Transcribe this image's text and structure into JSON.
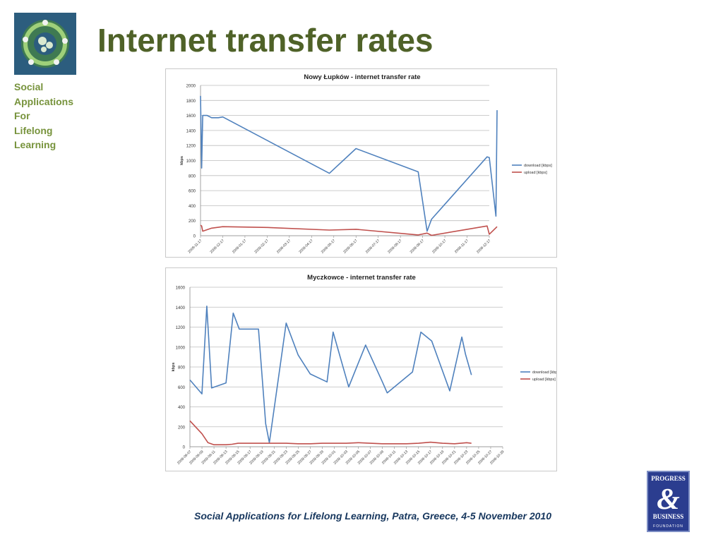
{
  "slide": {
    "title": "Internet transfer rates",
    "sidebar_lines": [
      "Social",
      "Applications",
      "For",
      "Lifelong",
      "Learning"
    ],
    "footer": "Social Applications for Lifelong Learning, Patra, Greece, 4-5 November 2010",
    "brand_logo": {
      "line1": "PROGRESS",
      "line2": "BUSINESS",
      "line3": "FOUNDATION",
      "symbol": "&"
    },
    "colors": {
      "title": "#4f6228",
      "sidebar": "#77933c",
      "footer": "#17375e",
      "download": "#4f81bd",
      "upload": "#c0504d",
      "logo_bg": "#2b3d8f"
    }
  },
  "chart_data": [
    {
      "type": "line",
      "title": "Nowy Łupków - internet transfer rate",
      "ylabel": "kbps",
      "xlabel": "",
      "ylim": [
        0,
        2000
      ],
      "yticks": [
        0,
        200,
        400,
        600,
        800,
        1000,
        1200,
        1400,
        1600,
        1800,
        2000
      ],
      "categories": [
        "2008-11-17",
        "2008-12-17",
        "2009-01-17",
        "2009-02-17",
        "2009-03-17",
        "2009-04-17",
        "2009-05-17",
        "2009-06-17",
        "2009-07-17",
        "2009-08-17",
        "2009-09-17",
        "2009-10-17",
        "2009-11-17",
        "2009-12-17"
      ],
      "grid": true,
      "legend": "right",
      "series": [
        {
          "name": "download [kbps]",
          "color": "#4f81bd",
          "x": [
            0,
            0.05,
            0.1,
            0.3,
            0.5,
            0.8,
            1.0,
            5.8,
            7.0,
            9.8,
            10.2,
            10.4,
            12.9,
            13.0,
            13.3,
            13.35
          ],
          "y": [
            1860,
            900,
            1600,
            1600,
            1570,
            1570,
            1580,
            830,
            1160,
            850,
            60,
            220,
            1050,
            1040,
            260,
            1670
          ]
        },
        {
          "name": "upload [kbps]",
          "color": "#c0504d",
          "x": [
            0,
            0.05,
            0.1,
            0.5,
            1.0,
            3.0,
            5.8,
            7.0,
            9.8,
            10.2,
            10.4,
            12.9,
            13.0,
            13.35
          ],
          "y": [
            140,
            130,
            60,
            100,
            120,
            110,
            75,
            85,
            10,
            35,
            5,
            130,
            20,
            120
          ]
        }
      ]
    },
    {
      "type": "line",
      "title": "Myczkowce - internet transfer rate",
      "ylabel": "kbps",
      "xlabel": "",
      "ylim": [
        0,
        1600
      ],
      "yticks": [
        0,
        200,
        400,
        600,
        800,
        1000,
        1200,
        1400,
        1600
      ],
      "categories": [
        "2009-09-07",
        "2009-09-09",
        "2009-09-11",
        "2009-09-13",
        "2009-09-15",
        "2009-09-17",
        "2009-09-19",
        "2009-09-21",
        "2009-09-23",
        "2009-09-25",
        "2009-09-27",
        "2009-09-29",
        "2009-10-01",
        "2009-10-03",
        "2009-10-05",
        "2009-10-07",
        "2009-10-09",
        "2009-10-11",
        "2009-10-13",
        "2009-10-15",
        "2009-10-17",
        "2009-10-19",
        "2009-10-21",
        "2009-10-23",
        "2009-10-25",
        "2009-10-27",
        "2009-10-29"
      ],
      "grid": true,
      "legend": "right",
      "series": [
        {
          "name": "download [kbps]",
          "color": "#4f81bd",
          "x": [
            0,
            1,
            1.4,
            1.8,
            3,
            3.6,
            4.1,
            5.7,
            6.3,
            6.6,
            8,
            9,
            10,
            11.4,
            11.9,
            13.2,
            13.8,
            14.6,
            16,
            16.4,
            17.2,
            18.5,
            19.2,
            20.1,
            21.6,
            22.6,
            22.9,
            23.4
          ],
          "y": [
            670,
            530,
            1410,
            590,
            640,
            1340,
            1180,
            1180,
            230,
            40,
            1240,
            920,
            730,
            650,
            1150,
            600,
            780,
            1020,
            650,
            540,
            620,
            750,
            1150,
            1060,
            560,
            1100,
            930,
            720
          ]
        },
        {
          "name": "upload [kbps]",
          "color": "#c0504d",
          "x": [
            0,
            1,
            1.5,
            2,
            3,
            3.5,
            4,
            5,
            6,
            7,
            8,
            9,
            10,
            11,
            12,
            13,
            14,
            15,
            16,
            17,
            18,
            19,
            20,
            21,
            22,
            23,
            23.4
          ],
          "y": [
            260,
            130,
            40,
            20,
            20,
            25,
            35,
            35,
            35,
            35,
            35,
            30,
            30,
            35,
            35,
            35,
            40,
            35,
            30,
            30,
            30,
            35,
            45,
            35,
            30,
            40,
            35
          ]
        }
      ]
    }
  ]
}
